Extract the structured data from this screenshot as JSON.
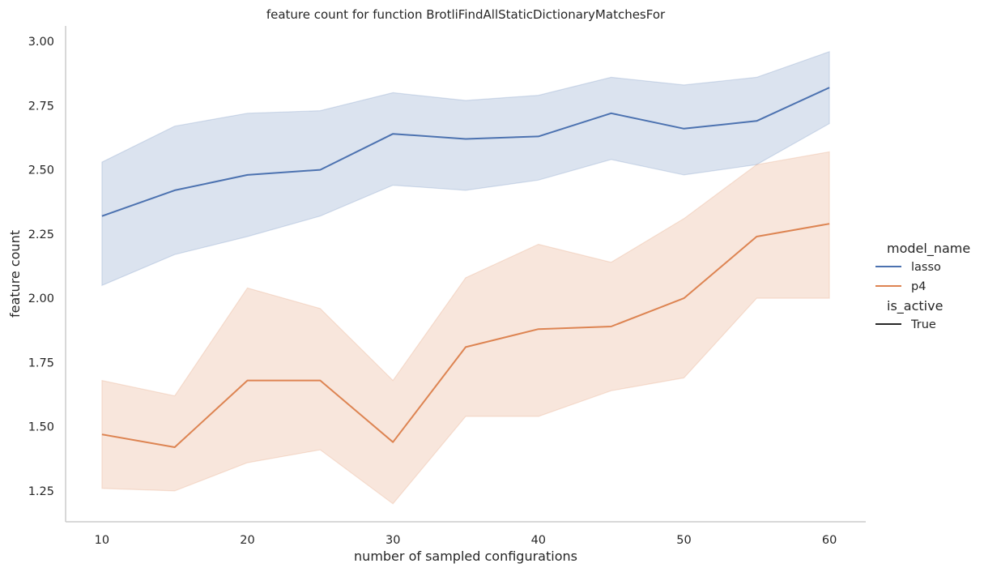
{
  "chart_data": {
    "type": "line",
    "title": "feature count for function BrotliFindAllStaticDictionaryMatchesFor",
    "xlabel": "number of sampled configurations",
    "ylabel": "feature count",
    "xlim": [
      7.5,
      62.5
    ],
    "ylim": [
      1.13,
      3.06
    ],
    "x_ticks": [
      10,
      20,
      30,
      40,
      50,
      60
    ],
    "y_ticks": [
      "1.25",
      "1.50",
      "1.75",
      "2.00",
      "2.25",
      "2.50",
      "2.75",
      "3.00"
    ],
    "x": [
      10,
      15,
      20,
      25,
      30,
      35,
      40,
      45,
      50,
      55,
      60
    ],
    "grid": false,
    "legend_position": "right",
    "series": [
      {
        "name": "lasso",
        "color": "#4c72b0",
        "values": [
          2.32,
          2.42,
          2.48,
          2.5,
          2.64,
          2.62,
          2.63,
          2.72,
          2.66,
          2.69,
          2.82
        ],
        "ci_low": [
          2.05,
          2.17,
          2.24,
          2.32,
          2.44,
          2.42,
          2.46,
          2.54,
          2.48,
          2.52,
          2.68
        ],
        "ci_high": [
          2.53,
          2.67,
          2.72,
          2.73,
          2.8,
          2.77,
          2.79,
          2.86,
          2.83,
          2.86,
          2.96
        ]
      },
      {
        "name": "p4",
        "color": "#dd8452",
        "values": [
          1.47,
          1.42,
          1.68,
          1.68,
          1.44,
          1.81,
          1.88,
          1.89,
          2.0,
          2.24,
          2.29
        ],
        "ci_low": [
          1.26,
          1.25,
          1.36,
          1.41,
          1.2,
          1.54,
          1.54,
          1.64,
          1.69,
          2.0,
          2.0
        ],
        "ci_high": [
          1.68,
          1.62,
          2.04,
          1.96,
          1.68,
          2.08,
          2.21,
          2.14,
          2.31,
          2.52,
          2.57
        ]
      }
    ],
    "legend": {
      "hue_title": "model_name",
      "hue_entries": [
        "lasso",
        "p4"
      ],
      "style_title": "is_active",
      "style_entries": [
        "True"
      ]
    }
  }
}
